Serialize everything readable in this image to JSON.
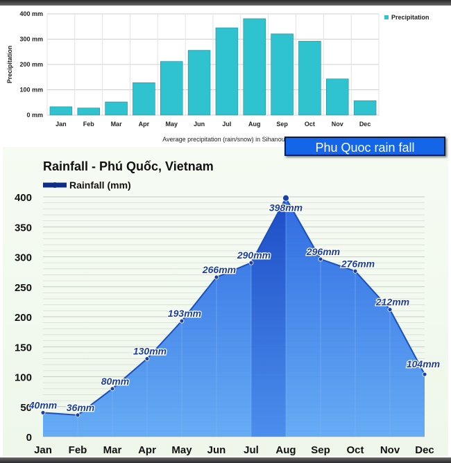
{
  "chart_data": [
    {
      "type": "bar",
      "categories": [
        "Jan",
        "Feb",
        "Mar",
        "Apr",
        "May",
        "Jun",
        "Jul",
        "Aug",
        "Sep",
        "Oct",
        "Nov",
        "Dec"
      ],
      "values": [
        33,
        28,
        52,
        128,
        212,
        256,
        345,
        381,
        321,
        292,
        143,
        57
      ],
      "ylabel": "Precipitation",
      "xlabel": "Average precipitation (rain/snow) in Sihanoukville, Camb",
      "yticks": [
        "0 mm",
        "100 mm",
        "200 mm",
        "300 mm",
        "400 mm"
      ],
      "ylim": [
        0,
        400
      ],
      "legend": "Precipitation",
      "legend_position": "top-right",
      "bar_color": "#2fc3cf",
      "grid": true
    },
    {
      "type": "area",
      "title": "Rainfall - Phú Quốc, Vietnam",
      "legend": "Rainfall (mm)",
      "legend_position": "top-left",
      "categories": [
        "Jan",
        "Feb",
        "Mar",
        "Apr",
        "May",
        "Jun",
        "Jul",
        "Aug",
        "Sep",
        "Oct",
        "Nov",
        "Dec"
      ],
      "values": [
        40,
        36,
        80,
        130,
        193,
        266,
        290,
        398,
        296,
        276,
        212,
        104
      ],
      "data_labels": [
        "40mm",
        "36mm",
        "80mm",
        "130mm",
        "193mm",
        "266mm",
        "290mm",
        "398mm",
        "296mm",
        "276mm",
        "212mm",
        "104mm"
      ],
      "yticks": [
        "0",
        "50",
        "100",
        "150",
        "200",
        "250",
        "300",
        "350",
        "400"
      ],
      "ylim": [
        0,
        400
      ],
      "line_color": "#1a4fc0",
      "fill_color": "#3a8cf0",
      "grid": true
    }
  ],
  "banner": {
    "text": "Phu Quoc rain fall",
    "color": "#1565e8"
  }
}
